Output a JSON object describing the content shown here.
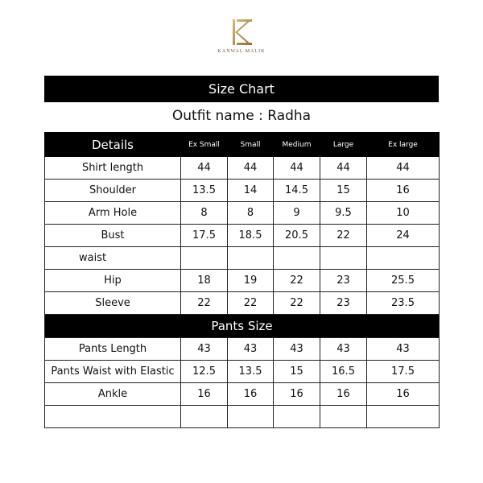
{
  "brand": {
    "name": "KANWAL MALIK",
    "logo_color": "#b8955a"
  },
  "title": "Size Chart",
  "outfit": {
    "label": "Outfit name :",
    "value": "Radha"
  },
  "header": [
    "Details",
    "Ex Small",
    "Small",
    "Medium",
    "Large",
    "Ex large"
  ],
  "shirt_rows": [
    {
      "label": "Shirt length",
      "values": [
        "44",
        "44",
        "44",
        "44",
        "44"
      ]
    },
    {
      "label": "Shoulder",
      "values": [
        "13.5",
        "14",
        "14.5",
        "15",
        "16"
      ]
    },
    {
      "label": "Arm Hole",
      "values": [
        "8",
        "8",
        "9",
        "9.5",
        "10"
      ]
    },
    {
      "label": "Bust",
      "values": [
        "17.5",
        "18.5",
        "20.5",
        "22",
        "24"
      ]
    },
    {
      "label": "waist",
      "values": [
        "",
        "",
        "",
        "",
        ""
      ]
    },
    {
      "label": "Hip",
      "values": [
        "18",
        "19",
        "22",
        "23",
        "25.5"
      ]
    },
    {
      "label": "Sleeve",
      "values": [
        "22",
        "22",
        "22",
        "23",
        "23.5"
      ]
    }
  ],
  "pants_title": "Pants Size",
  "pants_rows": [
    {
      "label": "Pants Length",
      "values": [
        "43",
        "43",
        "43",
        "43",
        "43"
      ]
    },
    {
      "label": "Pants Waist with Elastic",
      "values": [
        "12.5",
        "13.5",
        "15",
        "16.5",
        "17.5"
      ]
    },
    {
      "label": "Ankle",
      "values": [
        "16",
        "16",
        "16",
        "16",
        "16"
      ]
    },
    {
      "label": "",
      "values": [
        "",
        "",
        "",
        "",
        ""
      ]
    }
  ]
}
